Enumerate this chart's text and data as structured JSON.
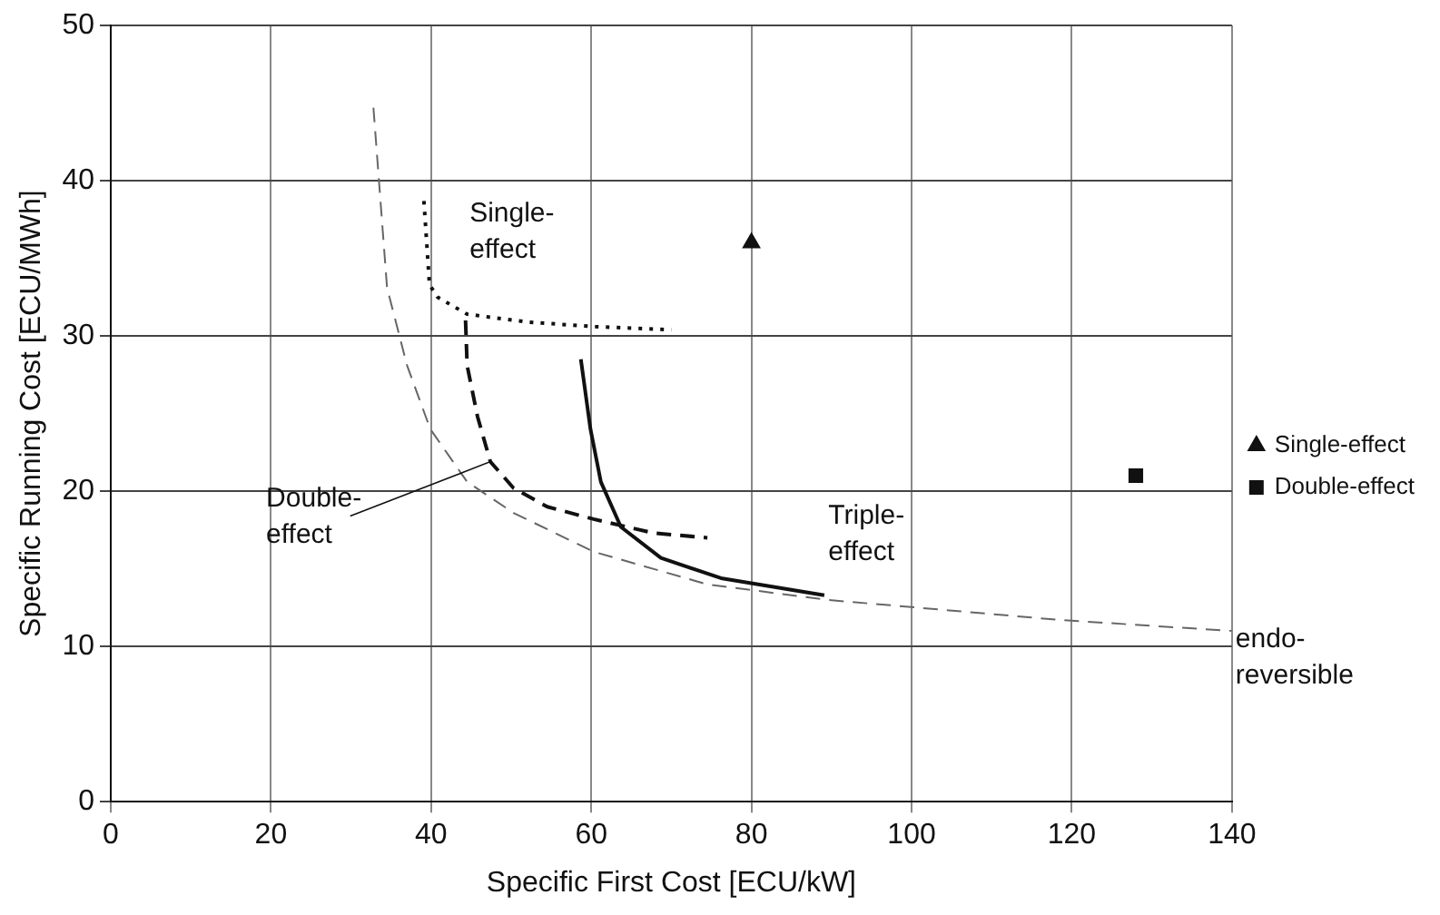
{
  "chart_data": {
    "type": "line",
    "xlabel": "Specific First Cost [ECU/kW]",
    "ylabel": "Specific Running Cost [ECU/MWh]",
    "xlim": [
      0,
      140
    ],
    "xticks": [
      0,
      20,
      40,
      60,
      80,
      100,
      120,
      140
    ],
    "ylim": [
      0,
      50
    ],
    "yticks": [
      0,
      10,
      20,
      30,
      40,
      50
    ],
    "grid": true,
    "legend": "right",
    "series": [
      {
        "line_style": "dotted",
        "marker": "none",
        "color": "#111111",
        "x": [
          39.1,
          39.8,
          40.8,
          44.5,
          52,
          60.3,
          70
        ],
        "values": [
          38.7,
          33.3,
          32.5,
          31.4,
          30.9,
          30.6,
          30.4
        ]
      },
      {
        "line_style": "dashed",
        "marker": "none",
        "color": "#111111",
        "x": [
          44.3,
          44.5,
          45.8,
          47.4,
          50.3,
          54.5,
          60.3,
          67.8,
          74.5
        ],
        "values": [
          31,
          28.1,
          24.8,
          21.9,
          20.2,
          19,
          18.2,
          17.3,
          17
        ]
      },
      {
        "line_style": "solid",
        "marker": "none",
        "color": "#111111",
        "x": [
          58.7,
          59.9,
          61.2,
          63.7,
          68.7,
          76.2,
          89.1
        ],
        "values": [
          28.5,
          24,
          20.6,
          17.7,
          15.7,
          14.4,
          13.3
        ]
      },
      {
        "line_style": "dashed",
        "marker": "none",
        "color": "#666666",
        "x": [
          32.8,
          34.5,
          37,
          39.9,
          44.5,
          50.3,
          60.3,
          74.5,
          89.5,
          118.7,
          140
        ],
        "values": [
          44.7,
          33.1,
          28.1,
          24,
          20.6,
          18.6,
          16.1,
          14,
          13,
          11.7,
          11
        ]
      },
      {
        "type": "scatter",
        "name": "Single-effect",
        "marker": "triangle",
        "color": "#111111",
        "x": [
          80
        ],
        "values": [
          36
        ]
      },
      {
        "type": "scatter",
        "name": "Double-effect",
        "marker": "square",
        "color": "#111111",
        "x": [
          128
        ],
        "values": [
          21
        ]
      }
    ],
    "annotations": [
      "Single-\neffect",
      {
        "text": "Double-\neffect",
        "x": 47.4,
        "y": 21.9
      },
      "Triple-\neffect",
      {
        "text": "endo-\nreversible",
        "x": 140,
        "y": 11.3
      }
    ]
  }
}
